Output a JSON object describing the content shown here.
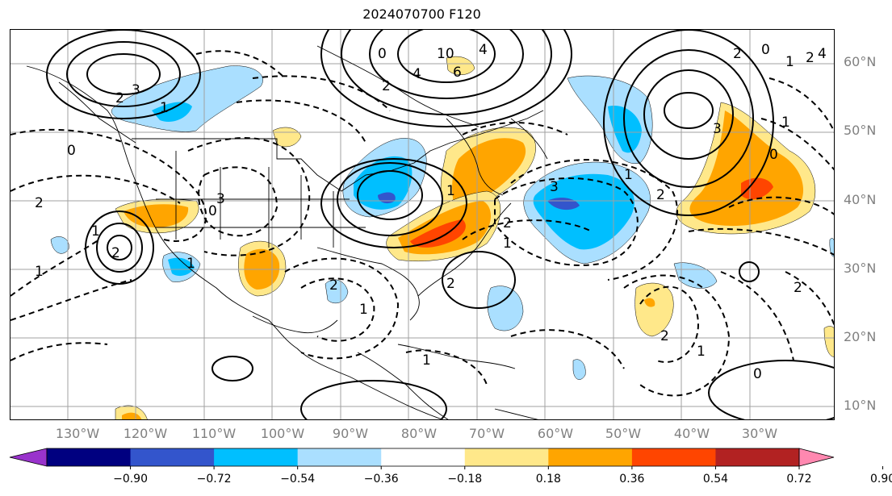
{
  "title": "2024070700 F120",
  "lat_labels": [
    "60°N",
    "50°N",
    "40°N",
    "30°N",
    "20°N",
    "10°N"
  ],
  "lon_labels": [
    "130°W",
    "120°W",
    "110°W",
    "100°W",
    "90°W",
    "80°W",
    "70°W",
    "60°W",
    "50°W",
    "40°W",
    "30°W"
  ],
  "contour_labels": [
    "3",
    "2",
    "1",
    "10",
    "4",
    "6",
    "2",
    "4",
    "0",
    "2",
    "3",
    "1",
    "0",
    "1",
    "2",
    "0",
    "2",
    "3",
    "4",
    "1",
    "2",
    "1",
    "0",
    "2",
    "3",
    "1",
    "2",
    "1",
    "2",
    "1",
    "1",
    "1",
    "2",
    "2",
    "1",
    "0",
    "0",
    "2",
    "1"
  ],
  "colorbar": {
    "colors": [
      "#9933cc",
      "#000080",
      "#3355cc",
      "#00bfff",
      "#aadfff",
      "#ffffff",
      "#ffe88a",
      "#ffa500",
      "#ff4500",
      "#b22222",
      "#ff88b0"
    ],
    "ticks": [
      "−0.90",
      "−0.72",
      "−0.54",
      "−0.36",
      "−0.18",
      "0.18",
      "0.36",
      "0.54",
      "0.72",
      "0.90"
    ]
  },
  "shading_colors": {
    "light_blue": "#aadfff",
    "blue": "#00bfff",
    "dark_blue": "#3355cc",
    "yellow": "#ffe88a",
    "orange": "#ffa500",
    "red": "#ff4500"
  }
}
